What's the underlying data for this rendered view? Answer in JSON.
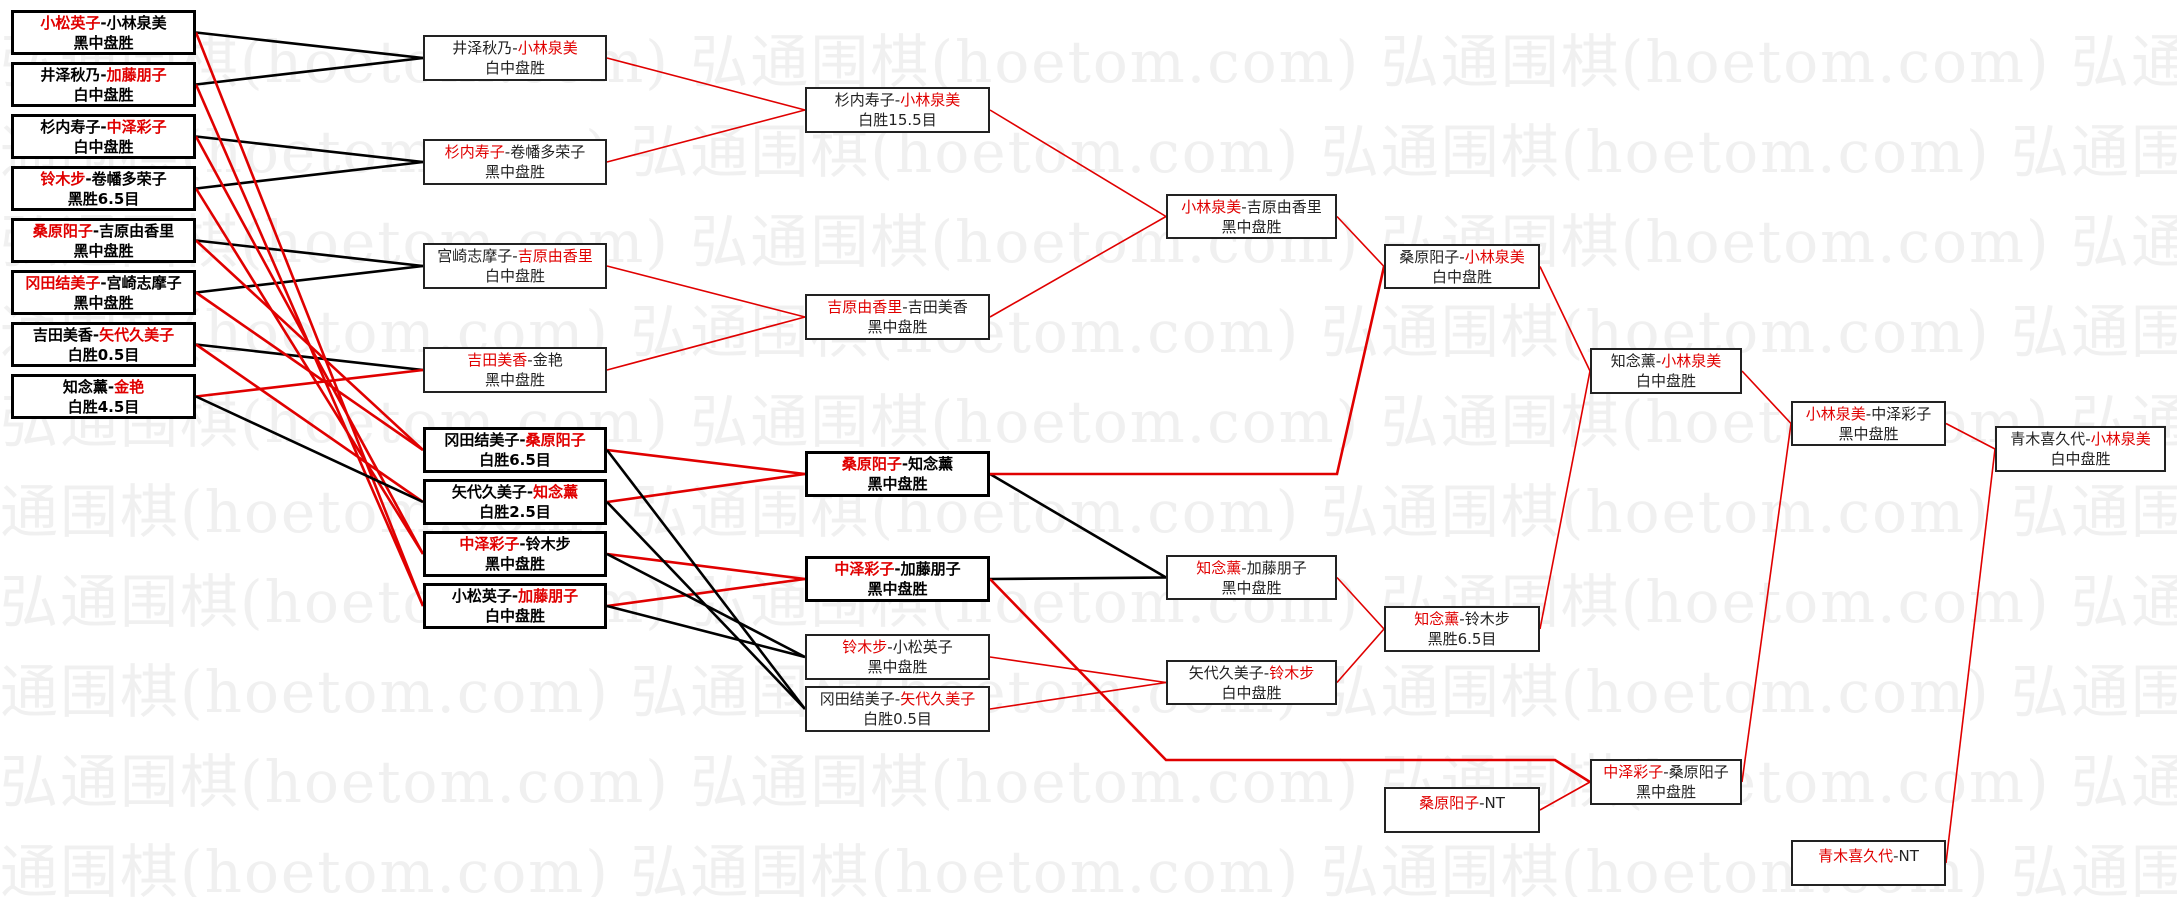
{
  "watermark": "弘通围棋(hoetom.com)",
  "colors": {
    "winner": "#e00000",
    "loser_line": "#000000",
    "winner_line": "#e00000"
  },
  "matches": [
    {
      "id": "a1",
      "p1": "小松英子",
      "p2": "小林泉美",
      "winner": 1,
      "result": "黑中盘胜"
    },
    {
      "id": "a2",
      "p1": "井泽秋乃",
      "p2": "加藤朋子",
      "winner": 2,
      "result": "白中盘胜"
    },
    {
      "id": "a3",
      "p1": "杉内寿子",
      "p2": "中泽彩子",
      "winner": 2,
      "result": "白中盘胜"
    },
    {
      "id": "a4",
      "p1": "铃木步",
      "p2": "卷幡多荣子",
      "winner": 1,
      "result": "黑胜6.5目"
    },
    {
      "id": "a5",
      "p1": "桑原阳子",
      "p2": "吉原由香里",
      "winner": 1,
      "result": "黑中盘胜"
    },
    {
      "id": "a6",
      "p1": "冈田结美子",
      "p2": "宫崎志摩子",
      "winner": 1,
      "result": "黑中盘胜"
    },
    {
      "id": "a7",
      "p1": "吉田美香",
      "p2": "矢代久美子",
      "winner": 2,
      "result": "白胜0.5目"
    },
    {
      "id": "a8",
      "p1": "知念薰",
      "p2": "金艳",
      "winner": 2,
      "result": "白胜4.5目"
    },
    {
      "id": "b1",
      "p1": "井泽秋乃",
      "p2": "小林泉美",
      "winner": 2,
      "result": "白中盘胜"
    },
    {
      "id": "b2",
      "p1": "杉内寿子",
      "p2": "卷幡多荣子",
      "winner": 1,
      "result": "黑中盘胜"
    },
    {
      "id": "b3",
      "p1": "宫崎志摩子",
      "p2": "吉原由香里",
      "winner": 2,
      "result": "白中盘胜"
    },
    {
      "id": "b4",
      "p1": "吉田美香",
      "p2": "金艳",
      "winner": 1,
      "result": "黑中盘胜"
    },
    {
      "id": "c1",
      "p1": "冈田结美子",
      "p2": "桑原阳子",
      "winner": 2,
      "result": "白胜6.5目"
    },
    {
      "id": "c2",
      "p1": "矢代久美子",
      "p2": "知念薰",
      "winner": 2,
      "result": "白胜2.5目"
    },
    {
      "id": "c3",
      "p1": "中泽彩子",
      "p2": "铃木步",
      "winner": 1,
      "result": "黑中盘胜"
    },
    {
      "id": "c4",
      "p1": "小松英子",
      "p2": "加藤朋子",
      "winner": 2,
      "result": "白中盘胜"
    },
    {
      "id": "d1",
      "p1": "杉内寿子",
      "p2": "小林泉美",
      "winner": 2,
      "result": "白胜15.5目"
    },
    {
      "id": "d2",
      "p1": "吉原由香里",
      "p2": "吉田美香",
      "winner": 1,
      "result": "黑中盘胜"
    },
    {
      "id": "d3",
      "p1": "桑原阳子",
      "p2": "知念薰",
      "winner": 1,
      "result": "黑中盘胜"
    },
    {
      "id": "d4",
      "p1": "中泽彩子",
      "p2": "加藤朋子",
      "winner": 1,
      "result": "黑中盘胜"
    },
    {
      "id": "d5",
      "p1": "铃木步",
      "p2": "小松英子",
      "winner": 1,
      "result": "黑中盘胜"
    },
    {
      "id": "d6",
      "p1": "冈田结美子",
      "p2": "矢代久美子",
      "winner": 2,
      "result": "白胜0.5目"
    },
    {
      "id": "e1",
      "p1": "小林泉美",
      "p2": "吉原由香里",
      "winner": 1,
      "result": "黑中盘胜"
    },
    {
      "id": "e2",
      "p1": "知念薰",
      "p2": "加藤朋子",
      "winner": 1,
      "result": "黑中盘胜"
    },
    {
      "id": "e3",
      "p1": "矢代久美子",
      "p2": "铃木步",
      "winner": 2,
      "result": "白中盘胜"
    },
    {
      "id": "f1",
      "p1": "桑原阳子",
      "p2": "小林泉美",
      "winner": 2,
      "result": "白中盘胜"
    },
    {
      "id": "f2",
      "p1": "知念薰",
      "p2": "铃木步",
      "winner": 1,
      "result": "黑胜6.5目"
    },
    {
      "id": "f3",
      "p1": "桑原阳子",
      "p2": "NT",
      "winner": 1,
      "result": ""
    },
    {
      "id": "g1",
      "p1": "知念薰",
      "p2": "小林泉美",
      "winner": 2,
      "result": "白中盘胜"
    },
    {
      "id": "g2",
      "p1": "中泽彩子",
      "p2": "桑原阳子",
      "winner": 1,
      "result": "黑中盘胜"
    },
    {
      "id": "h1",
      "p1": "小林泉美",
      "p2": "中泽彩子",
      "winner": 1,
      "result": "黑中盘胜"
    },
    {
      "id": "h2",
      "p1": "青木喜久代",
      "p2": "NT",
      "winner": 1,
      "result": ""
    },
    {
      "id": "i1",
      "p1": "青木喜久代",
      "p2": "小林泉美",
      "winner": 2,
      "result": "白中盘胜"
    }
  ],
  "connections": [
    {
      "from": "a1",
      "to": "b1",
      "type": "loser"
    },
    {
      "from": "a2",
      "to": "b1",
      "type": "loser"
    },
    {
      "from": "a3",
      "to": "b2",
      "type": "loser"
    },
    {
      "from": "a4",
      "to": "b2",
      "type": "loser"
    },
    {
      "from": "a5",
      "to": "b3",
      "type": "loser"
    },
    {
      "from": "a6",
      "to": "b3",
      "type": "loser"
    },
    {
      "from": "a7",
      "to": "b4",
      "type": "loser"
    },
    {
      "from": "a8",
      "to": "b4",
      "type": "winner"
    },
    {
      "from": "a1",
      "to": "c4",
      "type": "winner"
    },
    {
      "from": "a2",
      "to": "c4",
      "type": "winner"
    },
    {
      "from": "a3",
      "to": "c3",
      "type": "winner"
    },
    {
      "from": "a4",
      "to": "c3",
      "type": "winner"
    },
    {
      "from": "a5",
      "to": "c1",
      "type": "winner"
    },
    {
      "from": "a6",
      "to": "c1",
      "type": "winner"
    },
    {
      "from": "a7",
      "to": "c2",
      "type": "winner"
    },
    {
      "from": "a8",
      "to": "c2",
      "type": "loser"
    },
    {
      "from": "b1",
      "to": "d1",
      "type": "winner"
    },
    {
      "from": "b2",
      "to": "d1",
      "type": "winner"
    },
    {
      "from": "b3",
      "to": "d2",
      "type": "winner"
    },
    {
      "from": "b4",
      "to": "d2",
      "type": "winner"
    },
    {
      "from": "c1",
      "to": "d3",
      "type": "winner"
    },
    {
      "from": "c2",
      "to": "d3",
      "type": "winner"
    },
    {
      "from": "c3",
      "to": "d4",
      "type": "winner"
    },
    {
      "from": "c4",
      "to": "d4",
      "type": "winner"
    },
    {
      "from": "c1",
      "to": "d6",
      "type": "loser"
    },
    {
      "from": "c2",
      "to": "d6",
      "type": "loser"
    },
    {
      "from": "c3",
      "to": "d5",
      "type": "loser"
    },
    {
      "from": "c4",
      "to": "d5",
      "type": "loser"
    },
    {
      "from": "d1",
      "to": "e1",
      "type": "winner"
    },
    {
      "from": "d2",
      "to": "e1",
      "type": "winner"
    },
    {
      "from": "d3",
      "to": "e2",
      "type": "loser"
    },
    {
      "from": "d4",
      "to": "e2",
      "type": "loser"
    },
    {
      "from": "d5",
      "to": "e3",
      "type": "winner"
    },
    {
      "from": "d6",
      "to": "e3",
      "type": "winner"
    },
    {
      "from": "d3",
      "to": "f1",
      "type": "winner"
    },
    {
      "from": "d4",
      "to": "g2",
      "type": "winner"
    },
    {
      "from": "e1",
      "to": "f1",
      "type": "winner"
    },
    {
      "from": "e2",
      "to": "f2",
      "type": "winner"
    },
    {
      "from": "e3",
      "to": "f2",
      "type": "winner"
    },
    {
      "from": "f1",
      "to": "g1",
      "type": "winner"
    },
    {
      "from": "f2",
      "to": "g1",
      "type": "winner"
    },
    {
      "from": "f3",
      "to": "g2",
      "type": "winner"
    },
    {
      "from": "g1",
      "to": "h1",
      "type": "winner"
    },
    {
      "from": "g2",
      "to": "h1",
      "type": "winner"
    },
    {
      "from": "h1",
      "to": "i1",
      "type": "winner"
    },
    {
      "from": "h2",
      "to": "i1",
      "type": "winner"
    }
  ]
}
